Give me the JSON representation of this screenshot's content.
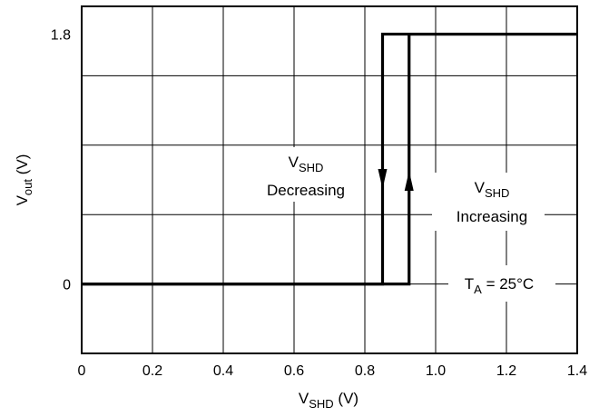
{
  "chart_data": {
    "type": "line",
    "title": "",
    "xlabel": {
      "main": "V",
      "sub": "SHD",
      "unit": " (V)"
    },
    "ylabel": {
      "main": "V",
      "sub": "out",
      "unit": " (V)"
    },
    "xlim": [
      0,
      1.4
    ],
    "ylim": [
      -0.5,
      2.0
    ],
    "x_ticks": [
      0,
      0.2,
      0.4,
      0.6,
      0.8,
      1.0,
      1.2,
      1.4
    ],
    "x_tick_labels": [
      "0",
      "0.2",
      "0.4",
      "0.6",
      "0.8",
      "1.0",
      "1.2",
      "1.4"
    ],
    "y_ticks": [
      0,
      1.8
    ],
    "y_tick_labels": [
      "0",
      "1.8"
    ],
    "grid": true,
    "gridlines_y": [
      -0.5,
      0,
      0.5,
      1.0,
      1.5,
      2.0
    ],
    "series": [
      {
        "values_x": [
          0,
          0.85,
          0.85,
          1.4
        ],
        "values_y": [
          0,
          0,
          1.8,
          1.8
        ],
        "direction": "decreasing"
      },
      {
        "values_x": [
          0,
          0.925,
          0.925,
          1.4
        ],
        "values_y": [
          0,
          0,
          1.8,
          1.8
        ],
        "direction": "increasing"
      }
    ],
    "annotations": {
      "decreasing": {
        "main": "V",
        "sub": "SHD",
        "line2": "Decreasing"
      },
      "increasing": {
        "main": "V",
        "sub": "SHD",
        "line2": "Increasing"
      },
      "temperature": {
        "main": "T",
        "sub": "A",
        "rest": " = 25°C"
      }
    },
    "colors": {
      "line": "#000000",
      "grid": "#000000",
      "background": "#ffffff"
    }
  }
}
